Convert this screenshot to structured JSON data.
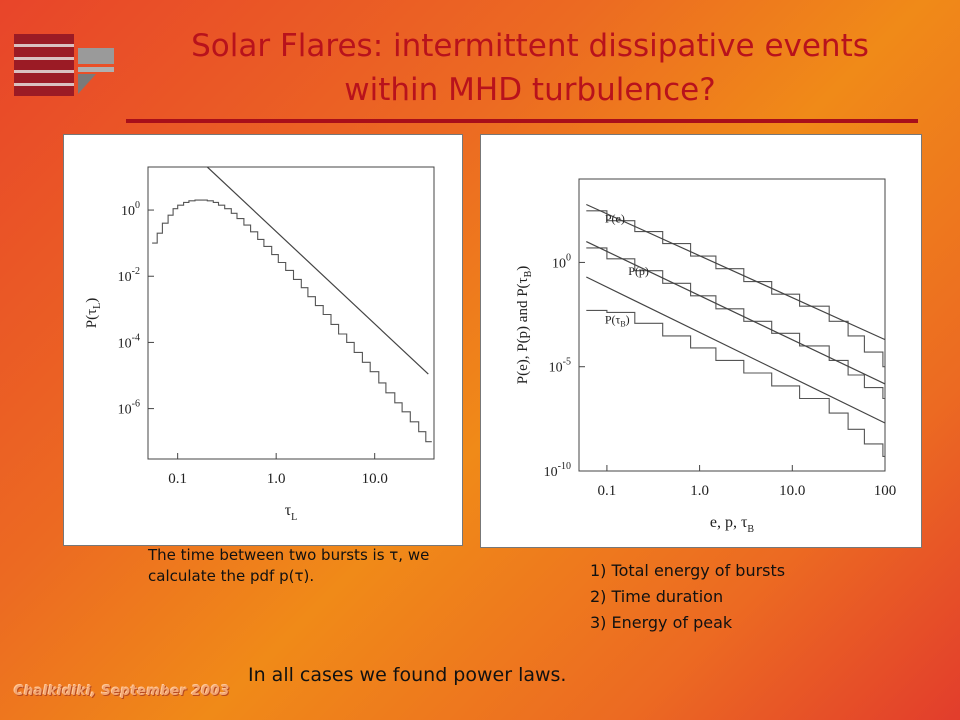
{
  "header": {
    "title_line1": "Solar Flares: intermittent dissipative events",
    "title_line2": "within MHD turbulence?"
  },
  "chart_data": [
    {
      "type": "line",
      "xlabel": "τ_L",
      "ylabel": "P(τ_L)",
      "x_scale": "log",
      "y_scale": "log",
      "xlim": [
        0.05,
        40
      ],
      "ylim": [
        3e-08,
        20
      ],
      "x_ticks": [
        {
          "value": 0.1,
          "label": "0.1"
        },
        {
          "value": 1.0,
          "label": "1.0"
        },
        {
          "value": 10.0,
          "label": "10.0"
        }
      ],
      "y_ticks": [
        {
          "value": 1,
          "label": "10",
          "exp": "0"
        },
        {
          "value": 0.01,
          "label": "10",
          "exp": "-2"
        },
        {
          "value": 0.0001,
          "label": "10",
          "exp": "-4"
        },
        {
          "value": 1e-06,
          "label": "10",
          "exp": "-6"
        }
      ],
      "series": [
        {
          "style": "step",
          "x": [
            0.055,
            0.062,
            0.07,
            0.08,
            0.09,
            0.1,
            0.115,
            0.13,
            0.15,
            0.17,
            0.2,
            0.23,
            0.26,
            0.3,
            0.35,
            0.4,
            0.47,
            0.55,
            0.65,
            0.75,
            0.9,
            1.05,
            1.25,
            1.5,
            1.8,
            2.1,
            2.5,
            3.0,
            3.6,
            4.3,
            5.2,
            6.2,
            7.5,
            9.0,
            11.0,
            13.0,
            16.0,
            19.0,
            23.0,
            28.0,
            33.0
          ],
          "y": [
            0.1,
            0.2,
            0.4,
            0.7,
            1.1,
            1.4,
            1.7,
            1.9,
            2.0,
            2.0,
            1.9,
            1.7,
            1.4,
            1.1,
            0.8,
            0.55,
            0.35,
            0.22,
            0.13,
            0.08,
            0.045,
            0.026,
            0.015,
            0.008,
            0.0045,
            0.0024,
            0.0013,
            0.0007,
            0.00035,
            0.00018,
            0.0001,
            5e-05,
            2.5e-05,
            1.3e-05,
            6e-06,
            3e-06,
            1.5e-06,
            8e-07,
            4e-07,
            2e-07,
            1e-07
          ]
        },
        {
          "style": "fit",
          "x": [
            0.2,
            35
          ],
          "y": [
            20,
            1.1e-05
          ]
        }
      ]
    },
    {
      "type": "line",
      "xlabel": "e, p, τ_B",
      "ylabel": "P(e), P(p) and P(τ_B)",
      "x_scale": "log",
      "y_scale": "log",
      "xlim": [
        0.05,
        100
      ],
      "ylim": [
        1e-10,
        10000
      ],
      "x_ticks": [
        {
          "value": 0.1,
          "label": "0.1"
        },
        {
          "value": 1.0,
          "label": "1.0"
        },
        {
          "value": 10.0,
          "label": "10.0"
        },
        {
          "value": 100,
          "label": "100"
        }
      ],
      "y_ticks": [
        {
          "value": 1,
          "label": "10",
          "exp": "0"
        },
        {
          "value": 1e-05,
          "label": "10",
          "exp": "-5"
        },
        {
          "value": 1e-10,
          "label": "10",
          "exp": "-10"
        }
      ],
      "series": [
        {
          "name": "P(e)",
          "style": "step",
          "x": [
            0.06,
            0.1,
            0.2,
            0.4,
            0.8,
            1.5,
            3.0,
            6.0,
            12.0,
            25.0,
            40.0,
            60.0,
            95.0
          ],
          "y": [
            300,
            100,
            30,
            8,
            2,
            0.5,
            0.12,
            0.03,
            0.008,
            0.0015,
            0.0003,
            5e-05,
            1e-05
          ]
        },
        {
          "name": "P(e) fit",
          "style": "fit",
          "x": [
            0.06,
            100
          ],
          "y": [
            600,
            0.0002
          ]
        },
        {
          "name": "P(p)",
          "style": "step",
          "x": [
            0.06,
            0.1,
            0.2,
            0.4,
            0.8,
            1.5,
            3.0,
            6.0,
            12.0,
            25.0,
            40.0,
            60.0,
            95.0
          ],
          "y": [
            5,
            1.5,
            0.4,
            0.1,
            0.025,
            0.006,
            0.0015,
            0.0004,
            0.0001,
            2e-05,
            4e-06,
            1e-06,
            3e-07
          ]
        },
        {
          "name": "P(p) fit",
          "style": "fit",
          "x": [
            0.06,
            100
          ],
          "y": [
            10,
            1.5e-06
          ]
        },
        {
          "name": "P(τ_B)",
          "style": "step",
          "x": [
            0.06,
            0.1,
            0.2,
            0.4,
            0.8,
            1.5,
            3.0,
            6.0,
            12.0,
            25.0,
            40.0,
            60.0,
            95.0
          ],
          "y": [
            0.005,
            0.004,
            0.0012,
            0.0003,
            8e-05,
            2e-05,
            5e-06,
            1.2e-06,
            3e-07,
            6e-08,
            1e-08,
            2e-09,
            5e-10
          ]
        },
        {
          "name": "P(τ_B) fit",
          "style": "fit",
          "x": [
            0.06,
            100
          ],
          "y": [
            0.2,
            2e-08
          ]
        }
      ],
      "legend": [
        {
          "label": "P(e)",
          "sub": "",
          "x": 0.095,
          "y": 80
        },
        {
          "label": "P(p)",
          "sub": "",
          "x": 0.17,
          "y": 0.25
        },
        {
          "label": "P(τ",
          "sub": "B",
          "x": 0.095,
          "y": 0.0012
        }
      ]
    }
  ],
  "captions": {
    "left": "The time between two bursts is τ, we calculate the pdf p(τ).",
    "measures": [
      "1) Total energy of bursts",
      "2) Time duration",
      "3) Energy of peak"
    ],
    "conclusion": "In all cases we found power laws."
  },
  "footer": "Chalkidiki, September 2003",
  "colors": {
    "title": "#b8121c",
    "rule": "#a80f1a",
    "logo_red": "#a01a24",
    "logo_grey": "#9a9a9a"
  }
}
